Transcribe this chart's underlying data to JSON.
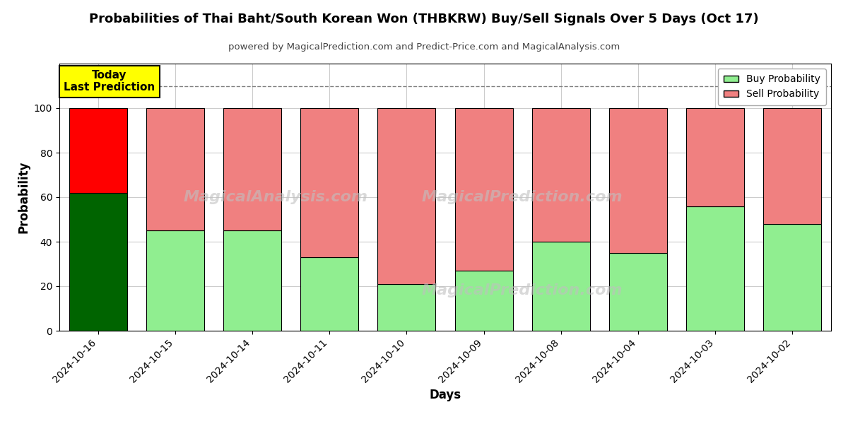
{
  "title": "Probabilities of Thai Baht/South Korean Won (THBKRW) Buy/Sell Signals Over 5 Days (Oct 17)",
  "subtitle": "powered by MagicalPrediction.com and Predict-Price.com and MagicalAnalysis.com",
  "xlabel": "Days",
  "ylabel": "Probability",
  "categories": [
    "2024-10-16",
    "2024-10-15",
    "2024-10-14",
    "2024-10-11",
    "2024-10-10",
    "2024-10-09",
    "2024-10-08",
    "2024-10-04",
    "2024-10-03",
    "2024-10-02"
  ],
  "buy_values": [
    62,
    45,
    45,
    33,
    21,
    27,
    40,
    35,
    56,
    48
  ],
  "sell_values": [
    38,
    55,
    55,
    67,
    79,
    73,
    60,
    65,
    44,
    52
  ],
  "buy_colors": [
    "#006400",
    "#90EE90",
    "#90EE90",
    "#90EE90",
    "#90EE90",
    "#90EE90",
    "#90EE90",
    "#90EE90",
    "#90EE90",
    "#90EE90"
  ],
  "sell_colors": [
    "#FF0000",
    "#F08080",
    "#F08080",
    "#F08080",
    "#F08080",
    "#F08080",
    "#F08080",
    "#F08080",
    "#F08080",
    "#F08080"
  ],
  "legend_buy_color": "#90EE90",
  "legend_sell_color": "#F08080",
  "today_label": "Today\nLast Prediction",
  "today_bg": "#FFFF00",
  "dashed_line_y": 110,
  "ylim": [
    0,
    120
  ],
  "yticks": [
    0,
    20,
    40,
    60,
    80,
    100
  ],
  "bar_edge_color": "#000000",
  "bar_edge_width": 0.8,
  "background_color": "#ffffff",
  "grid_color": "#cccccc",
  "bar_width": 0.75
}
